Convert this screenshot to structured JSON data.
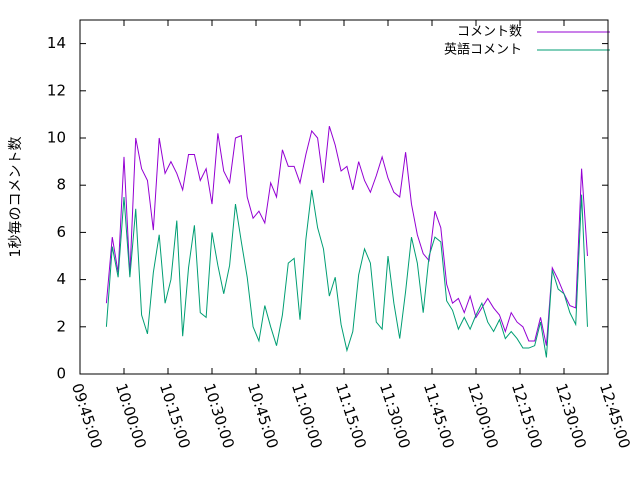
{
  "chart_data": {
    "type": "line",
    "ylabel": "1秒毎のコメント数",
    "x": [
      "09:54:00",
      "09:56:00",
      "09:58:00",
      "10:00:00",
      "10:02:00",
      "10:04:00",
      "10:06:00",
      "10:08:00",
      "10:10:00",
      "10:12:00",
      "10:14:00",
      "10:16:00",
      "10:18:00",
      "10:20:00",
      "10:22:00",
      "10:24:00",
      "10:26:00",
      "10:28:00",
      "10:30:00",
      "10:32:00",
      "10:34:00",
      "10:36:00",
      "10:38:00",
      "10:40:00",
      "10:42:00",
      "10:44:00",
      "10:46:00",
      "10:48:00",
      "10:50:00",
      "10:52:00",
      "10:54:00",
      "10:56:00",
      "10:58:00",
      "11:00:00",
      "11:02:00",
      "11:04:00",
      "11:06:00",
      "11:08:00",
      "11:10:00",
      "11:12:00",
      "11:14:00",
      "11:16:00",
      "11:18:00",
      "11:20:00",
      "11:22:00",
      "11:24:00",
      "11:26:00",
      "11:28:00",
      "11:30:00",
      "11:32:00",
      "11:34:00",
      "11:36:00",
      "11:38:00",
      "11:40:00",
      "11:42:00",
      "11:44:00",
      "11:46:00",
      "11:48:00",
      "11:50:00",
      "11:52:00",
      "11:54:00",
      "11:56:00",
      "11:58:00",
      "12:00:00",
      "12:02:00",
      "12:04:00",
      "12:06:00",
      "12:08:00",
      "12:10:00",
      "12:12:00",
      "12:14:00",
      "12:16:00",
      "12:18:00",
      "12:20:00",
      "12:22:00",
      "12:24:00",
      "12:26:00",
      "12:28:00",
      "12:30:00",
      "12:32:00",
      "12:34:00",
      "12:36:00",
      "12:38:00"
    ],
    "series": [
      {
        "name": "コメント数",
        "color": "#9400d3",
        "values": [
          3,
          5.8,
          4.3,
          9.2,
          4.2,
          10,
          8.7,
          8.2,
          6.1,
          10,
          8.5,
          9,
          8.5,
          7.8,
          9.3,
          9.3,
          8.2,
          8.7,
          7.2,
          10.2,
          8.6,
          8.1,
          10,
          10.1,
          7.5,
          6.6,
          6.9,
          6.4,
          8.1,
          7.5,
          9.5,
          8.8,
          8.8,
          8.1,
          9.3,
          10.3,
          10,
          8.1,
          10.5,
          9.7,
          8.6,
          8.8,
          7.8,
          9,
          8.2,
          7.7,
          8.4,
          9.2,
          8.3,
          7.7,
          7.5,
          9.4,
          7.2,
          5.9,
          5.1,
          4.8,
          6.9,
          6.2,
          3.8,
          3,
          3.2,
          2.6,
          3.3,
          2.4,
          2.8,
          3.2,
          2.8,
          2.5,
          1.8,
          2.6,
          2.2,
          2,
          1.4,
          1.4,
          2.4,
          1.2,
          4.5,
          4,
          3.4,
          2.9,
          2.8,
          8.7,
          5
        ]
      },
      {
        "name": "英語コメント",
        "color": "#009e73",
        "values": [
          2,
          5.4,
          4.1,
          7.5,
          4.1,
          7,
          2.5,
          1.7,
          4.3,
          5.9,
          3,
          4,
          6.5,
          1.6,
          4.5,
          6.3,
          2.6,
          2.4,
          6,
          4.6,
          3.4,
          4.6,
          7.2,
          5.6,
          4.1,
          2,
          1.4,
          2.9,
          2,
          1.2,
          2.5,
          4.7,
          4.9,
          2.3,
          5.7,
          7.8,
          6.2,
          5.3,
          3.3,
          4.1,
          2.1,
          1,
          1.8,
          4.2,
          5.3,
          4.7,
          2.2,
          1.9,
          5,
          3,
          1.5,
          3.5,
          5.8,
          4.7,
          2.6,
          5,
          5.8,
          5.6,
          3.1,
          2.7,
          1.9,
          2.4,
          1.9,
          2.5,
          3,
          2.2,
          1.8,
          2.3,
          1.5,
          1.8,
          1.5,
          1.1,
          1.1,
          1.2,
          2.2,
          0.7,
          4.4,
          3.6,
          3.4,
          2.6,
          2.1,
          7.6,
          2
        ]
      }
    ],
    "xlim": [
      "09:45:00",
      "12:45:00"
    ],
    "xticks": [
      "09:45:00",
      "10:00:00",
      "10:15:00",
      "10:30:00",
      "10:45:00",
      "11:00:00",
      "11:15:00",
      "11:30:00",
      "11:45:00",
      "12:00:00",
      "12:15:00",
      "12:30:00",
      "12:45:00"
    ],
    "ylim": [
      0,
      15
    ],
    "yticks": [
      0,
      2,
      4,
      6,
      8,
      10,
      12,
      14
    ],
    "legend": "top-right"
  }
}
